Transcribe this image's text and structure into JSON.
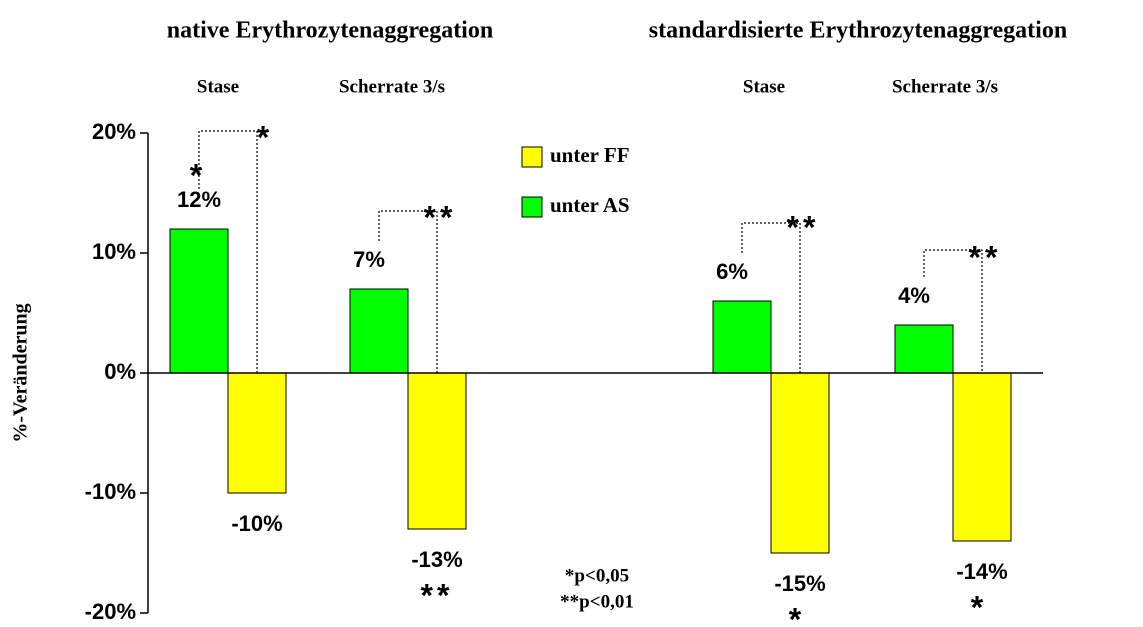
{
  "chart_data": {
    "type": "bar",
    "headers": [
      "native Erythrozytenaggregation",
      "standardisierte Erythrozytenaggregation"
    ],
    "categories": [
      "Stase",
      "Scherrate 3/s",
      "Stase",
      "Scherrate 3/s"
    ],
    "ylabel": "%-Veränderung",
    "series": [
      {
        "name": "unter FF",
        "color": "#ffff00",
        "values": [
          -10,
          -13,
          -15,
          -14
        ],
        "value_labels": [
          "-10%",
          "-13%",
          "-15%",
          "-14%"
        ]
      },
      {
        "name": "unter AS",
        "color": "#00ff00",
        "values": [
          12,
          7,
          6,
          4
        ],
        "value_labels": [
          "12%",
          "7%",
          "6%",
          "4%"
        ]
      }
    ],
    "ylim": [
      -20,
      20
    ],
    "yticks": [
      {
        "value": -20,
        "label": "-20%"
      },
      {
        "value": -10,
        "label": "-10%"
      },
      {
        "value": 0,
        "label": "0%"
      },
      {
        "value": 10,
        "label": "10%"
      },
      {
        "value": 20,
        "label": "20%"
      }
    ],
    "annotations": [
      "*",
      "*",
      "**",
      "**",
      "**",
      "**",
      "*",
      "*"
    ],
    "footnotes": [
      "*p<0,05",
      "**p<0,01"
    ]
  }
}
